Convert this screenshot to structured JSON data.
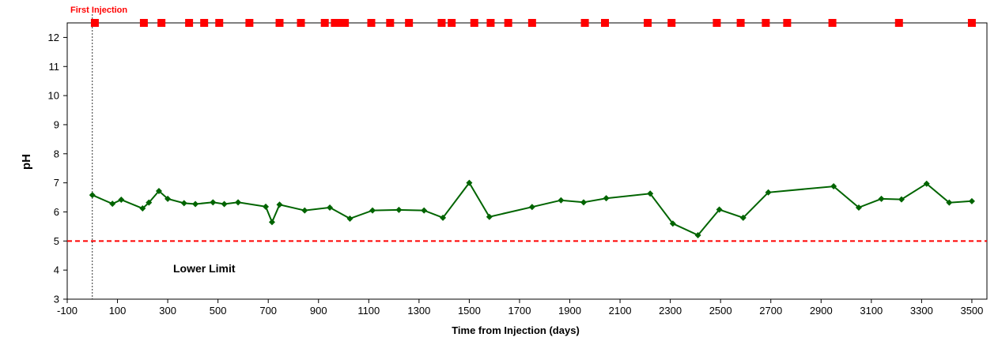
{
  "colors": {
    "series": "#006400",
    "injection": "#ff0000",
    "lower_limit": "#ff0000",
    "first_injection_text": "#ff0000",
    "axes": "#000000"
  },
  "chart_data": {
    "type": "line",
    "title": "",
    "xlabel": "Time from Injection (days)",
    "ylabel": "pH",
    "xlim": [
      -100,
      3560
    ],
    "ylim": [
      3,
      12.5
    ],
    "x_ticks": [
      -100,
      100,
      300,
      500,
      700,
      900,
      1100,
      1300,
      1500,
      1700,
      1900,
      2100,
      2300,
      2500,
      2700,
      2900,
      3100,
      3300,
      3500
    ],
    "x_tick_labels": [
      "-100",
      "100",
      "300",
      "500",
      "700",
      "900",
      "1100",
      "1300",
      "1500",
      "1700",
      "1900",
      "2100",
      "2300",
      "2500",
      "2700",
      "2900",
      "3100",
      "3300",
      "3500"
    ],
    "y_ticks": [
      3,
      4,
      5,
      6,
      7,
      8,
      9,
      10,
      11,
      12
    ],
    "y_tick_labels": [
      "3",
      "4",
      "5",
      "6",
      "7",
      "8",
      "9",
      "10",
      "11",
      "12"
    ],
    "grid": false,
    "legend": "none",
    "series": [
      {
        "points": [
          [
            0,
            6.58
          ],
          [
            80,
            6.28
          ],
          [
            115,
            6.42
          ],
          [
            200,
            6.12
          ],
          [
            225,
            6.32
          ],
          [
            265,
            6.72
          ],
          [
            300,
            6.45
          ],
          [
            365,
            6.3
          ],
          [
            410,
            6.27
          ],
          [
            480,
            6.33
          ],
          [
            525,
            6.27
          ],
          [
            580,
            6.33
          ],
          [
            690,
            6.18
          ],
          [
            715,
            5.65
          ],
          [
            745,
            6.25
          ],
          [
            845,
            6.05
          ],
          [
            945,
            6.15
          ],
          [
            1025,
            5.77
          ],
          [
            1115,
            6.05
          ],
          [
            1220,
            6.07
          ],
          [
            1320,
            6.05
          ],
          [
            1395,
            5.8
          ],
          [
            1500,
            7.0
          ],
          [
            1580,
            5.83
          ],
          [
            1750,
            6.17
          ],
          [
            1865,
            6.4
          ],
          [
            1955,
            6.33
          ],
          [
            2045,
            6.47
          ],
          [
            2220,
            6.63
          ],
          [
            2310,
            5.6
          ],
          [
            2410,
            5.2
          ],
          [
            2495,
            6.08
          ],
          [
            2590,
            5.8
          ],
          [
            2690,
            6.67
          ],
          [
            2950,
            6.88
          ],
          [
            3050,
            6.15
          ],
          [
            3140,
            6.45
          ],
          [
            3220,
            6.43
          ],
          [
            3320,
            6.97
          ],
          [
            3410,
            6.32
          ],
          [
            3500,
            6.37
          ]
        ]
      }
    ],
    "injection_events": {
      "y": 12.5,
      "x": [
        10,
        205,
        275,
        385,
        445,
        505,
        625,
        745,
        830,
        925,
        965,
        985,
        1005,
        1110,
        1185,
        1260,
        1390,
        1430,
        1520,
        1585,
        1655,
        1750,
        1960,
        2040,
        2210,
        2305,
        2485,
        2580,
        2680,
        2765,
        2945,
        3210,
        3500
      ]
    },
    "reference_lines": [
      {
        "orientation": "horizontal",
        "value": 5,
        "label": "Lower Limit"
      },
      {
        "orientation": "vertical",
        "value": 0,
        "label": "First Injection"
      }
    ]
  }
}
